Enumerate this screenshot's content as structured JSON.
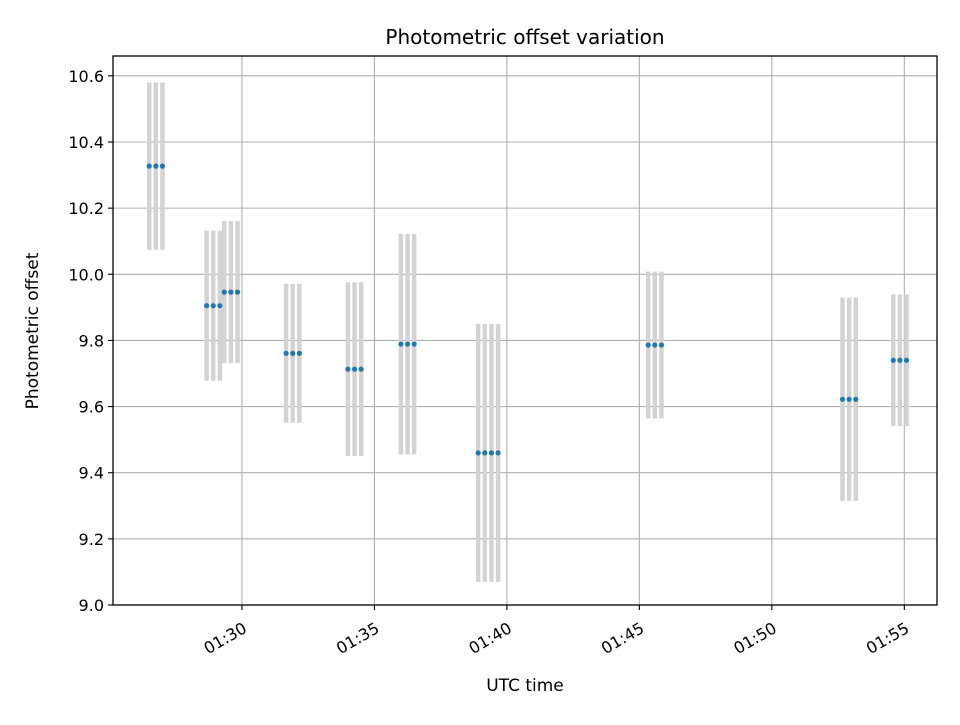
{
  "chart_data": {
    "type": "scatter",
    "title": "Photometric offset variation",
    "xlabel": "UTC time",
    "ylabel": "Photometric offset",
    "x_axis": {
      "kind": "time",
      "range": [
        "01:25:08",
        "01:56:14"
      ],
      "ticks": [
        "01:30",
        "01:35",
        "01:40",
        "01:45",
        "01:50",
        "01:55"
      ],
      "tick_label_rotation_deg": 30
    },
    "y_axis": {
      "range": [
        9.0,
        10.66
      ],
      "ticks": [
        "9.0",
        "9.2",
        "9.4",
        "9.6",
        "9.8",
        "10.0",
        "10.2",
        "10.4",
        "10.6"
      ]
    },
    "grid": true,
    "colors": {
      "point": "#1f77b4",
      "errorbar": "#d3d3d3",
      "grid": "#b0b0b0",
      "frame": "#000000"
    },
    "groups": [
      {
        "times": [
          "01:26:30",
          "01:26:45",
          "01:27:00"
        ],
        "value": 10.327,
        "err": 0.253
      },
      {
        "times": [
          "01:28:40",
          "01:28:55",
          "01:29:10"
        ],
        "value": 9.905,
        "err": 0.227
      },
      {
        "times": [
          "01:29:20",
          "01:29:35",
          "01:29:50"
        ],
        "value": 9.946,
        "err": 0.215
      },
      {
        "times": [
          "01:31:40",
          "01:31:55",
          "01:32:10"
        ],
        "value": 9.761,
        "err": 0.21
      },
      {
        "times": [
          "01:34:00",
          "01:34:15",
          "01:34:30"
        ],
        "value": 9.713,
        "err": 0.263
      },
      {
        "times": [
          "01:36:00",
          "01:36:15",
          "01:36:30"
        ],
        "value": 9.789,
        "err": 0.333
      },
      {
        "times": [
          "01:38:55",
          "01:39:10",
          "01:39:25",
          "01:39:40"
        ],
        "value": 9.46,
        "err": 0.39
      },
      {
        "times": [
          "01:45:20",
          "01:45:35",
          "01:45:50"
        ],
        "value": 9.786,
        "err": 0.222
      },
      {
        "times": [
          "01:52:40",
          "01:52:55",
          "01:53:10"
        ],
        "value": 9.622,
        "err": 0.307
      },
      {
        "times": [
          "01:54:35",
          "01:54:50",
          "01:55:05"
        ],
        "value": 9.74,
        "err": 0.199
      }
    ]
  }
}
